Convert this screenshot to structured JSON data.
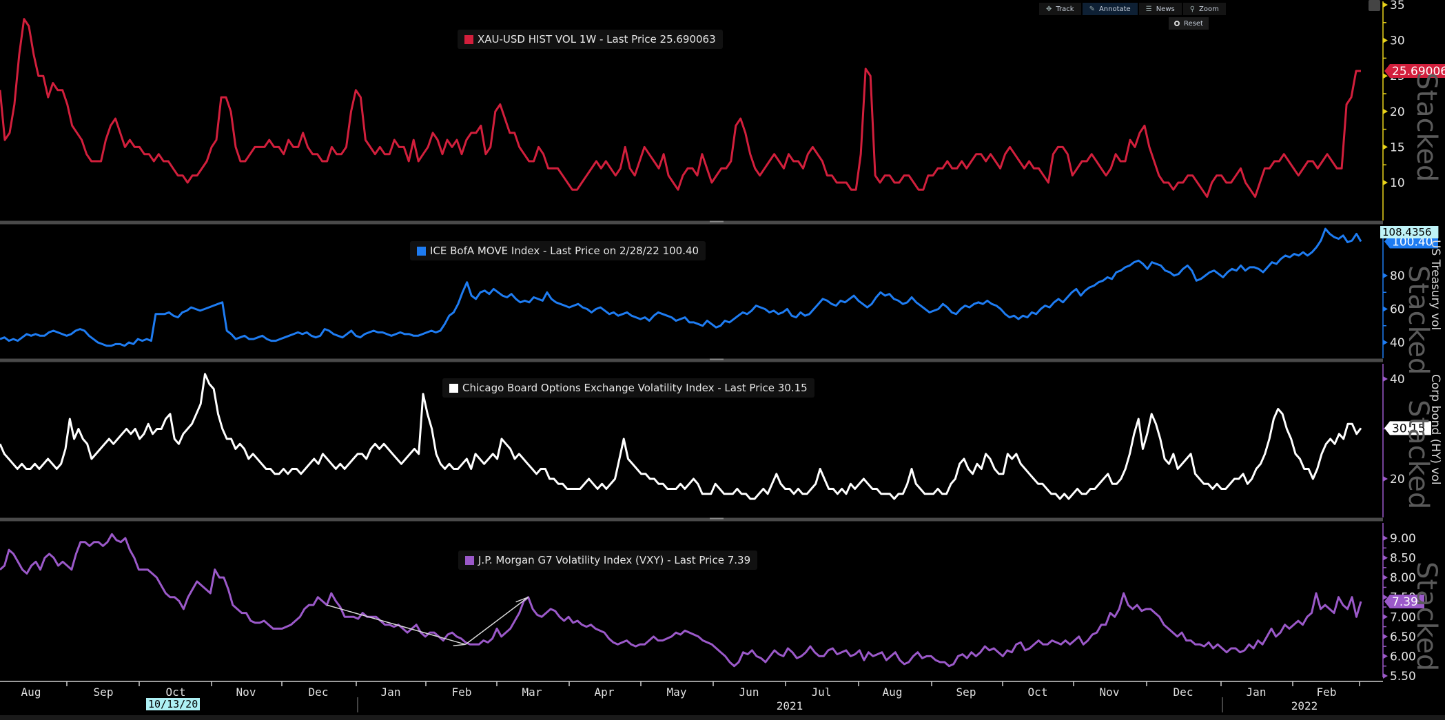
{
  "toolbar": {
    "buttons": [
      {
        "label": "Track",
        "icon": "move-icon"
      },
      {
        "label": "Annotate",
        "icon": "pencil-icon",
        "active": true
      },
      {
        "label": "News",
        "icon": "news-icon"
      },
      {
        "label": "Zoom",
        "icon": "magnifier-icon"
      }
    ],
    "reset_label": "Reset"
  },
  "x_axis": {
    "months": [
      "Aug",
      "Sep",
      "Oct",
      "Nov",
      "Dec",
      "Jan",
      "Feb",
      "Mar",
      "Apr",
      "May",
      "Jun",
      "Jul",
      "Aug",
      "Sep",
      "Oct",
      "Nov",
      "Dec",
      "Jan",
      "Feb"
    ],
    "years": [
      "2021",
      "2022"
    ],
    "cursor_date": "10/13/20"
  },
  "watermark": "Stacked",
  "colors": {
    "xau": "#d21f3c",
    "move": "#1e7cf2",
    "vix": "#ffffff",
    "vxy": "#9b59c9",
    "axis_xau": "#e8d21a",
    "axis_move": "#1e7cf2",
    "axis_vix": "#9b59c9",
    "axis_vxy": "#9b59c9",
    "background": "#000000",
    "separator": "#4a4a4a"
  },
  "chart_data": [
    {
      "type": "line",
      "panel": 1,
      "legend": "XAU-USD HIST VOL 1W - Last Price 25.690063",
      "series_name": "XAU-USD HIST VOL 1W",
      "last_value_label": "25.690063",
      "ylim": [
        7,
        35
      ],
      "yticks": [
        10,
        15,
        20,
        25,
        30,
        35
      ],
      "ylabel": "",
      "values": [
        23,
        16,
        17,
        21,
        28,
        33,
        32,
        28,
        25,
        25,
        22,
        24,
        23,
        23,
        21,
        18,
        17,
        16,
        14,
        13,
        13,
        13,
        16,
        18,
        19,
        17,
        15,
        16,
        15,
        15,
        14,
        14,
        13,
        14,
        13,
        13,
        12,
        11,
        11,
        10,
        11,
        11,
        12,
        13,
        15,
        16,
        22,
        22,
        20,
        15,
        13,
        13,
        14,
        15,
        15,
        15,
        16,
        15,
        15,
        14,
        16,
        15,
        15,
        17,
        15,
        14,
        14,
        13,
        13,
        15,
        14,
        14,
        15,
        20,
        23,
        22,
        16,
        15,
        14,
        15,
        14,
        14,
        16,
        15,
        15,
        13,
        16,
        13,
        14,
        15,
        17,
        16,
        14,
        16,
        15,
        16,
        14,
        16,
        17,
        17,
        18,
        14,
        15,
        20,
        21,
        19,
        17,
        17,
        15,
        14,
        13,
        13,
        15,
        14,
        12,
        12,
        12,
        11,
        10,
        9,
        9,
        10,
        11,
        12,
        13,
        12,
        13,
        12,
        11,
        12,
        15,
        12,
        11,
        13,
        15,
        14,
        13,
        12,
        14,
        11,
        10,
        9,
        11,
        12,
        12,
        11,
        14,
        12,
        10,
        11,
        12,
        12,
        13,
        18,
        19,
        17,
        14,
        12,
        11,
        12,
        13,
        14,
        13,
        12,
        14,
        13,
        13,
        12,
        14,
        15,
        14,
        13,
        11,
        11,
        10,
        10,
        10,
        9,
        9,
        14,
        26,
        25,
        11,
        10,
        11,
        11,
        10,
        10,
        11,
        11,
        10,
        9,
        9,
        11,
        11,
        12,
        12,
        13,
        12,
        12,
        13,
        12,
        13,
        14,
        14,
        13,
        14,
        13,
        12,
        14,
        15,
        14,
        13,
        12,
        13,
        12,
        12,
        11,
        10,
        14,
        15,
        15,
        14,
        11,
        12,
        13,
        13,
        14,
        13,
        12,
        11,
        12,
        14,
        13,
        13,
        16,
        15,
        17,
        18,
        15,
        13,
        11,
        10,
        10,
        9,
        10,
        10,
        11,
        11,
        10,
        9,
        8,
        10,
        11,
        11,
        10,
        10,
        11,
        12,
        10,
        9,
        8,
        10,
        12,
        12,
        13,
        13,
        14,
        13,
        12,
        11,
        12,
        13,
        13,
        12,
        13,
        14,
        13,
        12,
        12,
        21,
        22,
        25.7,
        25.7
      ]
    },
    {
      "type": "line",
      "panel": 2,
      "legend": "ICE BofA MOVE Index - Last Price on 2/28/22 100.40",
      "series_name": "ICE BofA MOVE Index",
      "last_value_label": "100.40",
      "high_label": "108.4356",
      "ylim": [
        32,
        109
      ],
      "yticks": [
        40,
        60,
        80
      ],
      "ylabel": "US Treasury vol",
      "values": [
        42,
        43,
        41,
        42,
        41,
        43,
        45,
        44,
        45,
        44,
        44,
        46,
        47,
        46,
        45,
        44,
        45,
        47,
        48,
        47,
        44,
        42,
        40,
        39,
        38,
        38,
        39,
        39,
        38,
        40,
        39,
        42,
        41,
        42,
        41,
        57,
        57,
        57,
        58,
        56,
        55,
        58,
        59,
        61,
        60,
        59,
        60,
        61,
        62,
        63,
        64,
        47,
        45,
        42,
        43,
        44,
        42,
        42,
        43,
        44,
        42,
        41,
        41,
        42,
        43,
        44,
        45,
        46,
        45,
        46,
        44,
        43,
        44,
        48,
        47,
        45,
        44,
        43,
        45,
        47,
        44,
        43,
        45,
        46,
        47,
        46,
        46,
        45,
        44,
        45,
        46,
        45,
        45,
        44,
        44,
        45,
        46,
        47,
        46,
        47,
        51,
        56,
        58,
        63,
        70,
        76,
        68,
        66,
        70,
        71,
        69,
        72,
        70,
        68,
        67,
        69,
        66,
        64,
        65,
        64,
        67,
        66,
        65,
        70,
        66,
        64,
        63,
        62,
        61,
        62,
        63,
        61,
        60,
        58,
        60,
        61,
        59,
        57,
        58,
        56,
        57,
        58,
        56,
        55,
        54,
        55,
        53,
        56,
        58,
        57,
        56,
        55,
        53,
        54,
        55,
        52,
        52,
        51,
        50,
        53,
        51,
        49,
        50,
        53,
        52,
        54,
        56,
        58,
        57,
        59,
        62,
        61,
        60,
        58,
        59,
        57,
        58,
        60,
        56,
        55,
        58,
        56,
        57,
        60,
        63,
        66,
        65,
        63,
        62,
        65,
        64,
        66,
        68,
        65,
        63,
        61,
        63,
        67,
        70,
        68,
        69,
        66,
        65,
        63,
        64,
        67,
        64,
        62,
        60,
        58,
        59,
        60,
        63,
        61,
        58,
        57,
        60,
        62,
        61,
        63,
        64,
        63,
        65,
        63,
        62,
        60,
        57,
        55,
        56,
        54,
        56,
        55,
        58,
        57,
        60,
        62,
        61,
        64,
        66,
        64,
        67,
        70,
        72,
        68,
        71,
        73,
        74,
        76,
        77,
        79,
        78,
        82,
        83,
        85,
        86,
        88,
        89,
        87,
        84,
        88,
        87,
        86,
        83,
        82,
        80,
        81,
        84,
        86,
        83,
        77,
        78,
        80,
        82,
        83,
        81,
        79,
        82,
        84,
        83,
        86,
        83,
        85,
        85,
        84,
        82,
        85,
        88,
        87,
        90,
        92,
        91,
        93,
        92,
        94,
        92,
        94,
        97,
        101,
        108,
        105,
        103,
        102,
        104,
        100,
        101,
        105,
        100.4
      ]
    },
    {
      "type": "line",
      "panel": 3,
      "legend": "Chicago Board Options Exchange Volatility Index - Last Price 30.15",
      "series_name": "Chicago Board Options Exchange Volatility Index",
      "last_value_label": "30.15",
      "ylim": [
        15,
        43
      ],
      "yticks": [
        20,
        40
      ],
      "ylabel": "Corp bond (HY) vol",
      "values": [
        27,
        25,
        24,
        23,
        22,
        23,
        22,
        22,
        23,
        22,
        23,
        24,
        23,
        22,
        23,
        26,
        32,
        28,
        30,
        28,
        27,
        24,
        25,
        26,
        27,
        28,
        27,
        28,
        29,
        30,
        29,
        30,
        28,
        29,
        31,
        29,
        30,
        30,
        32,
        33,
        28,
        27,
        29,
        30,
        31,
        33,
        35,
        41,
        39,
        38,
        33,
        30,
        28,
        28,
        26,
        27,
        26,
        24,
        25,
        24,
        23,
        22,
        22,
        21,
        21,
        22,
        21,
        22,
        22,
        21,
        22,
        23,
        24,
        23,
        25,
        24,
        23,
        22,
        23,
        22,
        23,
        24,
        25,
        25,
        24,
        26,
        27,
        26,
        27,
        26,
        25,
        24,
        23,
        24,
        25,
        26,
        25,
        37,
        33,
        30,
        25,
        23,
        22,
        23,
        22,
        22,
        23,
        24,
        22,
        25,
        24,
        23,
        24,
        25,
        24,
        28,
        27,
        26,
        24,
        25,
        24,
        23,
        22,
        21,
        22,
        22,
        20,
        20,
        19,
        19,
        18,
        18,
        18,
        18,
        19,
        20,
        19,
        18,
        19,
        18,
        19,
        20,
        24,
        28,
        24,
        23,
        22,
        21,
        21,
        20,
        20,
        19,
        19,
        18,
        18,
        18,
        19,
        18,
        19,
        20,
        19,
        17,
        17,
        17,
        19,
        18,
        17,
        17,
        17,
        18,
        17,
        17,
        16,
        16,
        17,
        18,
        17,
        19,
        21,
        19,
        18,
        18,
        17,
        18,
        17,
        17,
        18,
        19,
        22,
        20,
        18,
        18,
        17,
        18,
        17,
        19,
        18,
        19,
        20,
        19,
        18,
        18,
        17,
        17,
        17,
        16,
        17,
        17,
        19,
        22,
        19,
        18,
        17,
        17,
        17,
        18,
        17,
        17,
        19,
        20,
        23,
        24,
        22,
        21,
        23,
        22,
        25,
        24,
        22,
        21,
        21,
        25,
        24,
        25,
        23,
        22,
        21,
        20,
        19,
        19,
        18,
        17,
        17,
        16,
        17,
        16,
        17,
        18,
        17,
        17,
        18,
        18,
        19,
        20,
        21,
        19,
        19,
        20,
        22,
        25,
        29,
        32,
        26,
        29,
        33,
        31,
        28,
        24,
        23,
        25,
        22,
        23,
        24,
        25,
        21,
        20,
        19,
        19,
        18,
        19,
        18,
        18,
        19,
        20,
        20,
        21,
        19,
        20,
        22,
        23,
        25,
        28,
        32,
        34,
        33,
        30,
        28,
        25,
        24,
        22,
        22,
        20,
        22,
        25,
        27,
        28,
        27,
        29,
        28,
        31,
        31,
        29,
        30.15
      ]
    },
    {
      "type": "line",
      "panel": 4,
      "legend": "J.P. Morgan G7 Volatility Index (VXY) - Last Price 7.39",
      "series_name": "J.P. Morgan G7 Volatility Index (VXY)",
      "last_value_label": "7.39",
      "ylim": [
        5.4,
        9.3
      ],
      "yticks": [
        5.5,
        6.0,
        6.5,
        7.0,
        7.5,
        8.0,
        8.5,
        9.0
      ],
      "ylabel": "",
      "annotations": [
        "arrow from Dec 2020 peak down to late-Jan 2021 trough",
        "arrow from late-Jan 2021 trough up to Feb 2021 peak"
      ],
      "values": [
        8.2,
        8.3,
        8.7,
        8.6,
        8.4,
        8.2,
        8.1,
        8.3,
        8.4,
        8.2,
        8.5,
        8.6,
        8.5,
        8.3,
        8.4,
        8.3,
        8.2,
        8.6,
        8.9,
        8.9,
        8.8,
        8.9,
        8.9,
        8.8,
        8.9,
        9.1,
        8.95,
        8.9,
        9.0,
        8.7,
        8.5,
        8.2,
        8.2,
        8.2,
        8.1,
        8.0,
        7.8,
        7.6,
        7.5,
        7.5,
        7.4,
        7.2,
        7.5,
        7.7,
        7.9,
        7.8,
        7.7,
        7.6,
        8.2,
        8.0,
        8.0,
        7.7,
        7.3,
        7.2,
        7.1,
        7.1,
        6.9,
        6.85,
        6.85,
        6.9,
        6.8,
        6.7,
        6.7,
        6.7,
        6.75,
        6.8,
        6.9,
        7.0,
        7.2,
        7.3,
        7.3,
        7.5,
        7.4,
        7.3,
        7.6,
        7.4,
        7.25,
        7.0,
        7.0,
        7.0,
        6.95,
        7.1,
        7.0,
        7.0,
        7.0,
        6.9,
        6.8,
        6.8,
        6.75,
        6.8,
        6.7,
        6.6,
        6.7,
        6.8,
        6.6,
        6.5,
        6.6,
        6.6,
        6.5,
        6.4,
        6.55,
        6.6,
        6.5,
        6.45,
        6.35,
        6.3,
        6.3,
        6.3,
        6.4,
        6.35,
        6.45,
        6.7,
        6.5,
        6.6,
        6.7,
        6.9,
        7.1,
        7.4,
        7.5,
        7.2,
        7.05,
        7.0,
        7.1,
        7.2,
        7.15,
        7.0,
        6.9,
        7.0,
        6.85,
        6.9,
        6.8,
        6.75,
        6.8,
        6.7,
        6.65,
        6.6,
        6.45,
        6.35,
        6.3,
        6.35,
        6.4,
        6.3,
        6.25,
        6.3,
        6.3,
        6.4,
        6.5,
        6.4,
        6.4,
        6.45,
        6.5,
        6.6,
        6.55,
        6.65,
        6.6,
        6.55,
        6.5,
        6.4,
        6.35,
        6.3,
        6.2,
        6.1,
        6.0,
        5.85,
        5.75,
        5.85,
        6.1,
        6.05,
        6.15,
        6.0,
        5.95,
        5.85,
        6.0,
        6.15,
        6.05,
        6.0,
        6.2,
        6.1,
        5.95,
        6.0,
        6.1,
        6.25,
        6.1,
        6.0,
        6.0,
        6.15,
        6.2,
        6.05,
        6.1,
        6.15,
        6.0,
        6.05,
        6.15,
        5.9,
        6.1,
        6.0,
        6.05,
        6.1,
        5.9,
        6.0,
        6.1,
        5.9,
        5.8,
        5.85,
        6.0,
        6.1,
        5.95,
        6.0,
        6.0,
        5.9,
        5.85,
        5.85,
        5.75,
        5.8,
        6.0,
        6.05,
        5.95,
        6.1,
        6.0,
        6.1,
        6.25,
        6.15,
        6.2,
        6.1,
        6.0,
        6.15,
        6.1,
        6.3,
        6.35,
        6.15,
        6.2,
        6.3,
        6.4,
        6.3,
        6.3,
        6.4,
        6.35,
        6.3,
        6.4,
        6.3,
        6.4,
        6.5,
        6.3,
        6.4,
        6.55,
        6.6,
        6.8,
        6.8,
        7.1,
        7.0,
        7.2,
        7.6,
        7.3,
        7.2,
        7.3,
        7.15,
        7.2,
        7.2,
        7.1,
        7.0,
        6.8,
        6.7,
        6.6,
        6.5,
        6.6,
        6.4,
        6.4,
        6.3,
        6.3,
        6.25,
        6.35,
        6.2,
        6.3,
        6.2,
        6.1,
        6.2,
        6.2,
        6.1,
        6.15,
        6.3,
        6.2,
        6.4,
        6.3,
        6.5,
        6.7,
        6.5,
        6.6,
        6.8,
        6.7,
        6.8,
        6.9,
        6.8,
        7.0,
        7.1,
        7.6,
        7.2,
        7.3,
        7.2,
        7.1,
        7.5,
        7.3,
        7.2,
        7.5,
        7.0,
        7.39
      ]
    }
  ]
}
